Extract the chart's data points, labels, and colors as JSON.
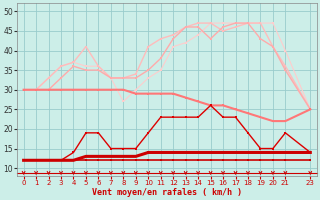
{
  "xlabel": "Vent moyen/en rafales ( km/h )",
  "bg_color": "#cceee8",
  "grid_color": "#99cccc",
  "x_ticks": [
    0,
    1,
    2,
    3,
    4,
    5,
    6,
    7,
    8,
    9,
    10,
    11,
    12,
    13,
    14,
    15,
    16,
    17,
    18,
    19,
    20,
    21,
    23
  ],
  "ylim": [
    8,
    52
  ],
  "xlim": [
    -0.5,
    23.5
  ],
  "yticks": [
    10,
    15,
    20,
    25,
    30,
    35,
    40,
    45,
    50
  ],
  "line_flat_x": [
    0,
    1,
    2,
    3,
    4,
    5,
    6,
    7,
    8,
    9,
    10,
    11,
    12,
    13,
    14,
    15,
    16,
    17,
    18,
    19,
    20,
    21,
    23
  ],
  "line_flat_y": [
    12,
    12,
    12,
    12,
    12,
    12,
    12,
    12,
    12,
    12,
    12,
    12,
    12,
    12,
    12,
    12,
    12,
    12,
    12,
    12,
    12,
    12,
    12
  ],
  "line_flat_color": "#cc0000",
  "line_flat_lw": 1.2,
  "line_slow_x": [
    0,
    1,
    2,
    3,
    4,
    5,
    6,
    7,
    8,
    9,
    10,
    11,
    12,
    13,
    14,
    15,
    16,
    17,
    18,
    19,
    20,
    21,
    23
  ],
  "line_slow_y": [
    12,
    12,
    12,
    12,
    12,
    13,
    13,
    13,
    13,
    13,
    14,
    14,
    14,
    14,
    14,
    14,
    14,
    14,
    14,
    14,
    14,
    14,
    14
  ],
  "line_slow_color": "#cc0000",
  "line_slow_lw": 2.2,
  "line_med_x": [
    0,
    1,
    2,
    3,
    4,
    5,
    6,
    7,
    8,
    9,
    10,
    11,
    12,
    13,
    14,
    15,
    16,
    17,
    18,
    19,
    20,
    21,
    23
  ],
  "line_med_y": [
    12,
    12,
    12,
    12,
    14,
    19,
    19,
    15,
    15,
    15,
    19,
    23,
    23,
    23,
    23,
    26,
    23,
    23,
    19,
    15,
    15,
    19,
    14
  ],
  "line_med_color": "#dd0000",
  "line_med_lw": 1.0,
  "line_pink_x": [
    0,
    1,
    2,
    3,
    4,
    5,
    6,
    7,
    8,
    9,
    10,
    11,
    12,
    13,
    14,
    15,
    16,
    17,
    18,
    19,
    20,
    21,
    23
  ],
  "line_pink_y": [
    30,
    30,
    30,
    30,
    30,
    30,
    30,
    30,
    30,
    29,
    29,
    29,
    29,
    28,
    27,
    26,
    26,
    25,
    24,
    23,
    22,
    22,
    25
  ],
  "line_pink_color": "#ff7777",
  "line_pink_lw": 1.5,
  "line_p2_x": [
    0,
    1,
    2,
    3,
    4,
    5,
    6,
    7,
    8,
    9,
    10,
    11,
    12,
    13,
    14,
    15,
    16,
    17,
    18,
    19,
    20,
    21,
    23
  ],
  "line_p2_y": [
    30,
    30,
    30,
    33,
    36,
    35,
    35,
    33,
    33,
    33,
    35,
    38,
    43,
    46,
    46,
    43,
    46,
    47,
    47,
    43,
    41,
    35,
    25
  ],
  "line_p2_color": "#ffaaaa",
  "line_p2_lw": 1.0,
  "line_p3_x": [
    0,
    1,
    2,
    3,
    4,
    5,
    6,
    7,
    8,
    9,
    10,
    11,
    12,
    13,
    14,
    15,
    16,
    17,
    18,
    19,
    20,
    21,
    23
  ],
  "line_p3_y": [
    30,
    30,
    33,
    36,
    37,
    41,
    36,
    33,
    33,
    34,
    41,
    43,
    44,
    46,
    47,
    47,
    45,
    46,
    47,
    47,
    41,
    36,
    25
  ],
  "line_p3_color": "#ffbbbb",
  "line_p3_lw": 1.0,
  "line_p4_x": [
    0,
    1,
    2,
    3,
    4,
    5,
    6,
    7,
    8,
    9,
    10,
    11,
    12,
    13,
    14,
    15,
    16,
    17,
    18,
    19,
    20,
    21,
    23
  ],
  "line_p4_y": [
    30,
    30,
    33,
    36,
    37,
    36,
    36,
    33,
    27,
    30,
    33,
    35,
    41,
    42,
    44,
    47,
    47,
    47,
    47,
    47,
    47,
    40,
    25
  ],
  "line_p4_color": "#ffcccc",
  "line_p4_lw": 0.8,
  "arrow_color": "#cc0000",
  "tick_color": "#cc0000"
}
